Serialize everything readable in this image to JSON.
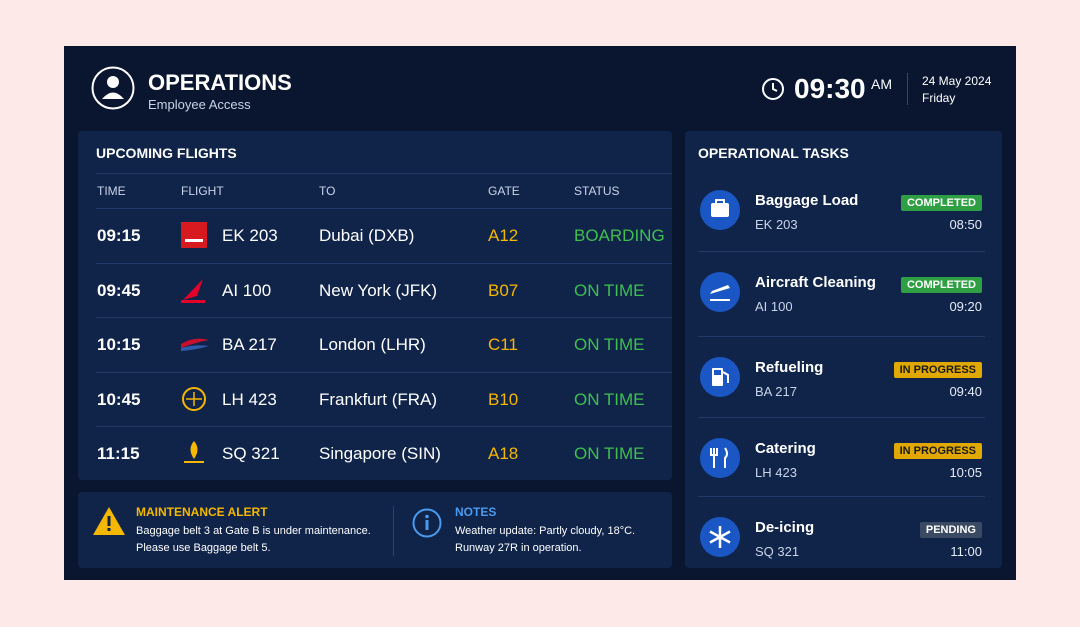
{
  "header": {
    "title": "OPERATIONS",
    "subtitle": "Employee Access",
    "time": "09:30",
    "ampm": "AM",
    "date": "24 May 2024",
    "day": "Friday"
  },
  "flights": {
    "title": "UPCOMING FLIGHTS",
    "columns": [
      "TIME",
      "FLIGHT",
      "TO",
      "GATE",
      "STATUS"
    ],
    "rows": [
      [
        "09:15",
        "EK 203",
        "Dubai (DXB)",
        "A12",
        "BOARDING"
      ],
      [
        "09:45",
        "AI 100",
        "New York (JFK)",
        "B07",
        "ON TIME"
      ],
      [
        "10:15",
        "BA 217",
        "London (LHR)",
        "C11",
        "ON TIME"
      ],
      [
        "10:45",
        "LH 423",
        "Frankfurt (FRA)",
        "B10",
        "ON TIME"
      ],
      [
        "11:15",
        "SQ 321",
        "Singapore (SIN)",
        "A18",
        "ON TIME"
      ]
    ]
  },
  "tasks": {
    "title": "OPERATIONAL TASKS",
    "items": [
      {
        "name": "Baggage Load",
        "flight": "EK 203",
        "status": "COMPLETED",
        "time": "08:50",
        "color": "#2ea043"
      },
      {
        "name": "Aircraft Cleaning",
        "flight": "AI 100",
        "status": "COMPLETED",
        "time": "09:20",
        "color": "#2ea043"
      },
      {
        "name": "Refueling",
        "flight": "BA 217",
        "status": "IN PROGRESS",
        "time": "09:40",
        "color": "#e0a800"
      },
      {
        "name": "Catering",
        "flight": "LH 423",
        "status": "IN PROGRESS",
        "time": "10:05",
        "color": "#e0a800"
      },
      {
        "name": "De-icing",
        "flight": "SQ 321",
        "status": "PENDING",
        "time": "11:00",
        "color": "#3b4a63"
      }
    ]
  },
  "alert": {
    "title": "MAINTENANCE ALERT",
    "lines": [
      "Baggage belt 3 at Gate B is under maintenance.",
      "Please use Baggage belt 5."
    ]
  },
  "notes": {
    "title": "NOTES",
    "lines": [
      "Weather update: Partly cloudy, 18°C.",
      "Runway 27R in operation."
    ]
  }
}
